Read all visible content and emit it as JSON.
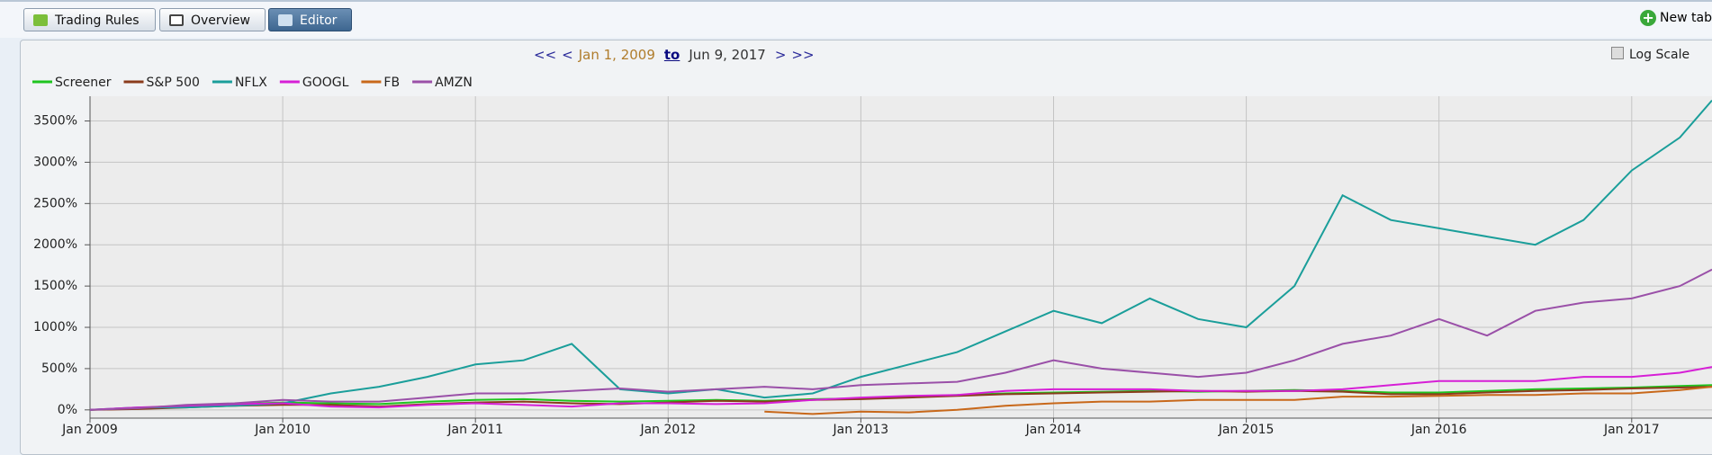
{
  "tabs": [
    "Trading Rules",
    "Overview",
    "Editor"
  ],
  "new_tab": "New tab",
  "range": {
    "first": "<<",
    "prev": "<",
    "start": "Jan 1, 2009",
    "to": "to",
    "end": "Jun 9, 2017",
    "next": ">",
    "last": ">>"
  },
  "log_scale_label": "Log Scale",
  "chart_data": {
    "type": "line",
    "log_scale": false,
    "grid": true,
    "x": [
      "2009-01",
      "2009-04",
      "2009-07",
      "2009-10",
      "2010-01",
      "2010-04",
      "2010-07",
      "2010-10",
      "2011-01",
      "2011-04",
      "2011-07",
      "2011-10",
      "2012-01",
      "2012-04",
      "2012-07",
      "2012-10",
      "2013-01",
      "2013-04",
      "2013-07",
      "2013-10",
      "2014-01",
      "2014-04",
      "2014-07",
      "2014-10",
      "2015-01",
      "2015-04",
      "2015-07",
      "2015-10",
      "2016-01",
      "2016-04",
      "2016-07",
      "2016-10",
      "2017-01",
      "2017-04",
      "2017-06"
    ],
    "xlim": [
      "2009-01",
      "2017-06"
    ],
    "xticks": [
      {
        "value": "2009-01",
        "label": "Jan 2009"
      },
      {
        "value": "2010-01",
        "label": "Jan 2010"
      },
      {
        "value": "2011-01",
        "label": "Jan 2011"
      },
      {
        "value": "2012-01",
        "label": "Jan 2012"
      },
      {
        "value": "2013-01",
        "label": "Jan 2013"
      },
      {
        "value": "2014-01",
        "label": "Jan 2014"
      },
      {
        "value": "2015-01",
        "label": "Jan 2015"
      },
      {
        "value": "2016-01",
        "label": "Jan 2016"
      },
      {
        "value": "2017-01",
        "label": "Jan 2017"
      }
    ],
    "ylim": [
      -100,
      3800
    ],
    "yticks": [
      {
        "value": 0,
        "label": "0%"
      },
      {
        "value": 500,
        "label": "500%"
      },
      {
        "value": 1000,
        "label": "1000%"
      },
      {
        "value": 1500,
        "label": "1500%"
      },
      {
        "value": 2000,
        "label": "2000%"
      },
      {
        "value": 2500,
        "label": "2500%"
      },
      {
        "value": 3000,
        "label": "3000%"
      },
      {
        "value": 3500,
        "label": "3500%"
      }
    ],
    "series": [
      {
        "name": "Screener",
        "color": "#1fc41f",
        "values": [
          0,
          20,
          50,
          70,
          90,
          80,
          70,
          100,
          120,
          130,
          110,
          100,
          110,
          120,
          110,
          130,
          140,
          160,
          180,
          200,
          210,
          220,
          230,
          220,
          230,
          240,
          230,
          210,
          210,
          230,
          250,
          260,
          270,
          290,
          300
        ]
      },
      {
        "name": "S&P 500",
        "color": "#8a3b1c",
        "values": [
          0,
          10,
          30,
          50,
          60,
          60,
          40,
          70,
          90,
          100,
          80,
          70,
          90,
          110,
          100,
          120,
          130,
          150,
          170,
          190,
          200,
          210,
          220,
          230,
          220,
          230,
          220,
          190,
          190,
          210,
          230,
          240,
          260,
          270,
          280
        ]
      },
      {
        "name": "NFLX",
        "color": "#1a9e9a",
        "values": [
          0,
          30,
          30,
          50,
          80,
          200,
          280,
          400,
          550,
          600,
          800,
          250,
          200,
          250,
          150,
          200,
          400,
          550,
          700,
          950,
          1200,
          1050,
          1350,
          1100,
          1000,
          1500,
          2600,
          2300,
          2200,
          2100,
          2000,
          2300,
          2900,
          3300,
          3750
        ]
      },
      {
        "name": "GOOGL",
        "color": "#d61fd6",
        "values": [
          0,
          30,
          50,
          70,
          80,
          40,
          30,
          60,
          80,
          60,
          40,
          80,
          80,
          70,
          80,
          120,
          150,
          170,
          180,
          230,
          250,
          250,
          250,
          230,
          230,
          230,
          250,
          300,
          350,
          350,
          350,
          400,
          400,
          450,
          520
        ]
      },
      {
        "name": "FB",
        "color": "#c8681a",
        "values": [
          null,
          null,
          null,
          null,
          null,
          null,
          null,
          null,
          null,
          null,
          null,
          null,
          null,
          null,
          -20,
          -50,
          -20,
          -30,
          0,
          50,
          80,
          100,
          100,
          120,
          120,
          120,
          160,
          160,
          170,
          180,
          180,
          200,
          200,
          240,
          280
        ]
      },
      {
        "name": "AMZN",
        "color": "#9a50a8",
        "values": [
          0,
          20,
          60,
          80,
          120,
          100,
          100,
          150,
          200,
          200,
          230,
          260,
          220,
          250,
          280,
          250,
          300,
          320,
          340,
          450,
          600,
          500,
          450,
          400,
          450,
          600,
          800,
          900,
          1100,
          900,
          1200,
          1300,
          1350,
          1500,
          1700
        ]
      }
    ]
  }
}
